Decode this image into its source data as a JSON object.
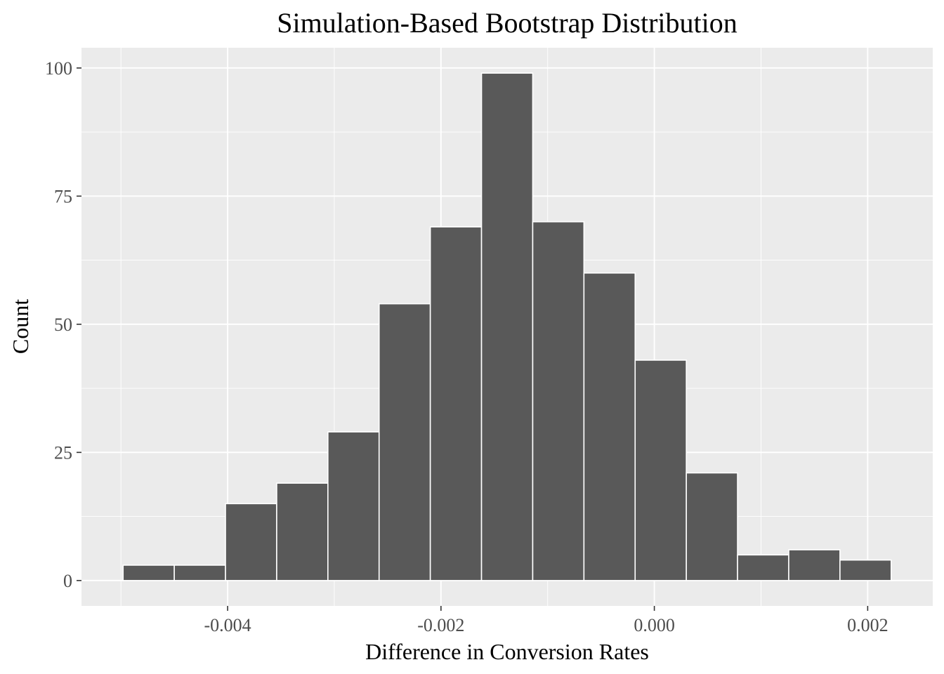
{
  "chart_data": {
    "type": "bar",
    "subtype": "histogram",
    "title": "Simulation-Based Bootstrap Distribution",
    "xlabel": "Difference in Conversion Rates",
    "ylabel": "Count",
    "bin_width": 0.00048,
    "bins": [
      {
        "x0": -0.00498,
        "x1": -0.0045,
        "count": 3
      },
      {
        "x0": -0.0045,
        "x1": -0.00402,
        "count": 3
      },
      {
        "x0": -0.00402,
        "x1": -0.00354,
        "count": 15
      },
      {
        "x0": -0.00354,
        "x1": -0.00306,
        "count": 19
      },
      {
        "x0": -0.00306,
        "x1": -0.00258,
        "count": 29
      },
      {
        "x0": -0.00258,
        "x1": -0.0021,
        "count": 54
      },
      {
        "x0": -0.0021,
        "x1": -0.00162,
        "count": 69
      },
      {
        "x0": -0.00162,
        "x1": -0.00114,
        "count": 99
      },
      {
        "x0": -0.00114,
        "x1": -0.00066,
        "count": 70
      },
      {
        "x0": -0.00066,
        "x1": -0.00018,
        "count": 60
      },
      {
        "x0": -0.00018,
        "x1": 0.0003,
        "count": 43
      },
      {
        "x0": 0.0003,
        "x1": 0.00078,
        "count": 21
      },
      {
        "x0": 0.00078,
        "x1": 0.00126,
        "count": 5
      },
      {
        "x0": 0.00126,
        "x1": 0.00174,
        "count": 6
      },
      {
        "x0": 0.00174,
        "x1": 0.00222,
        "count": 4
      }
    ],
    "xlim": [
      -0.00537,
      0.00261
    ],
    "ylim": [
      -4.95,
      103.95
    ],
    "x_major_ticks": [
      {
        "value": -0.004,
        "label": "-0.004"
      },
      {
        "value": -0.002,
        "label": "-0.002"
      },
      {
        "value": 0.0,
        "label": "0.000"
      },
      {
        "value": 0.002,
        "label": "0.002"
      }
    ],
    "x_minor_ticks": [
      -0.005,
      -0.003,
      -0.001,
      0.001
    ],
    "y_major_ticks": [
      {
        "value": 0,
        "label": "0"
      },
      {
        "value": 25,
        "label": "25"
      },
      {
        "value": 50,
        "label": "50"
      },
      {
        "value": 75,
        "label": "75"
      },
      {
        "value": 100,
        "label": "100"
      }
    ],
    "y_minor_ticks": [
      12.5,
      37.5,
      62.5,
      87.5
    ],
    "grid": true,
    "legend": "none",
    "colors": {
      "bar_fill": "#595959",
      "bar_outline": "#FFFFFF",
      "panel_background": "#EBEBEB",
      "grid": "#FFFFFF",
      "tick_label": "#4D4D4D",
      "tick_mark": "#333333"
    }
  }
}
